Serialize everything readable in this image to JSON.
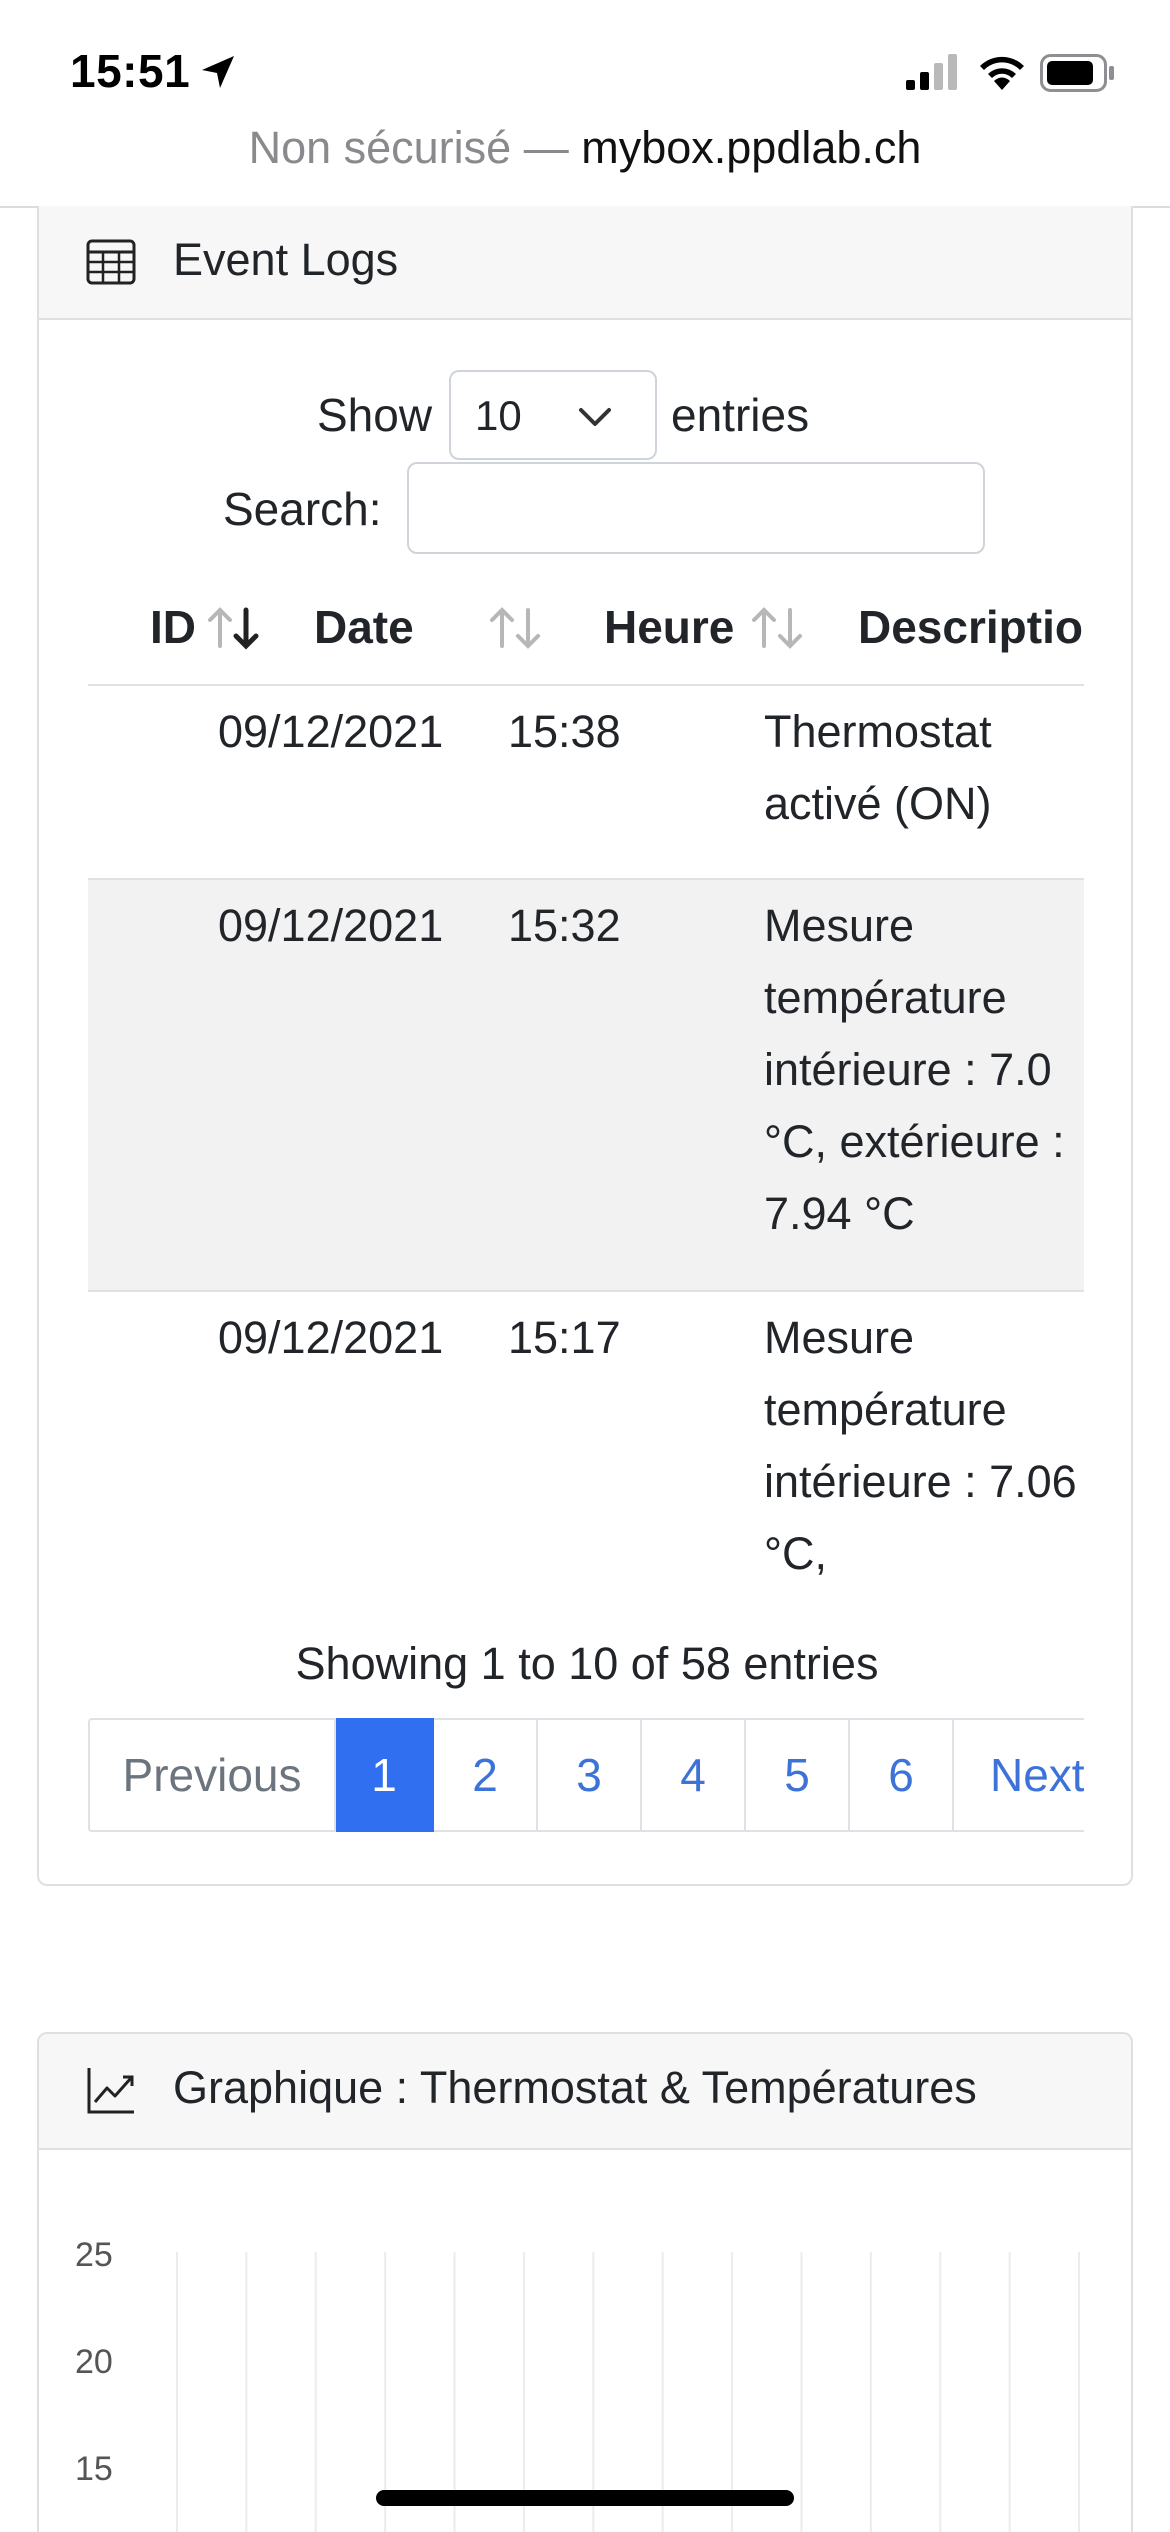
{
  "status_bar": {
    "time": "15:51",
    "icons": [
      "location-arrow-icon",
      "signal-icon",
      "wifi-icon",
      "battery-icon"
    ]
  },
  "url_bar": {
    "insecure_label": "Non sécurisé —",
    "domain": "mybox.ppdlab.ch"
  },
  "event_logs": {
    "title": "Event Logs",
    "icon": "table-icon",
    "length_menu": {
      "prefix": "Show",
      "selected": "10",
      "suffix": "entries"
    },
    "search": {
      "label": "Search:",
      "value": "",
      "placeholder": ""
    },
    "columns": [
      "ID",
      "Date",
      "Heure",
      "Description"
    ],
    "rows": [
      {
        "id": "",
        "date": "09/12/2021",
        "time": "15:38",
        "description": "Thermostat activé (ON)"
      },
      {
        "id": "",
        "date": "09/12/2021",
        "time": "15:32",
        "description": "Mesure température intérieure : 7.0 °C, extérieure : 7.94 °C"
      },
      {
        "id": "",
        "date": "09/12/2021",
        "time": "15:17",
        "description": "Mesure température intérieure : 7.06 °C,"
      }
    ],
    "info": "Showing 1 to 10 of 58 entries",
    "pagination": {
      "previous": "Previous",
      "pages": [
        "1",
        "2",
        "3",
        "4",
        "5",
        "6"
      ],
      "active": "1",
      "next": "Next"
    }
  },
  "chart_card": {
    "title": "Graphique : Thermostat & Températures",
    "icon": "line-chart-icon"
  },
  "chart_data": {
    "type": "line",
    "title": "",
    "xlabel": "",
    "ylabel": "",
    "yticks": [
      "25",
      "20",
      "15"
    ],
    "ylim": [
      15,
      25
    ],
    "grid": true,
    "series": []
  },
  "colors": {
    "accent": "#2f6ff0",
    "link": "#3d72d8",
    "stripe": "#f2f2f2",
    "header_bg": "#f7f7f7"
  }
}
